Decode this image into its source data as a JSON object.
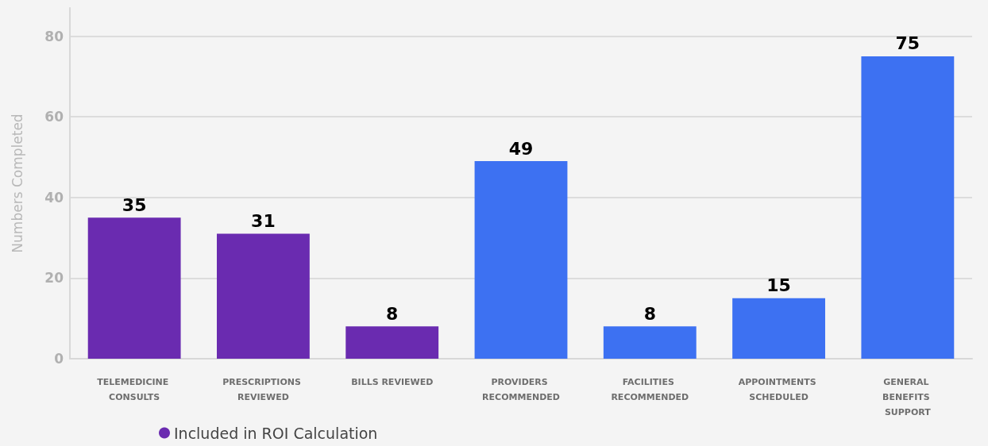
{
  "chart_data": {
    "type": "bar",
    "ylabel": "Numbers Completed",
    "categories": [
      "TELEMEDICINE CONSULTS",
      "PRESCRIPTIONS REVIEWED",
      "BILLS REVIEWED",
      "PROVIDERS RECOMMENDED",
      "FACILITIES RECOMMENDED",
      "APPOINTMENTS SCHEDULED",
      "GENERAL BENEFITS SUPPORT"
    ],
    "series": [
      {
        "name": "Included in ROI Calculation",
        "color": "#6a2bb0",
        "values": [
          35,
          31,
          8,
          null,
          null,
          null,
          null
        ]
      },
      {
        "color": "#3d71f2",
        "values": [
          null,
          null,
          null,
          49,
          8,
          15,
          75
        ]
      }
    ],
    "data_labels": true,
    "ylim": [
      0,
      87
    ],
    "yticks": [
      0,
      20,
      40,
      60,
      80
    ],
    "grid": "y",
    "legend": "bottom left"
  }
}
